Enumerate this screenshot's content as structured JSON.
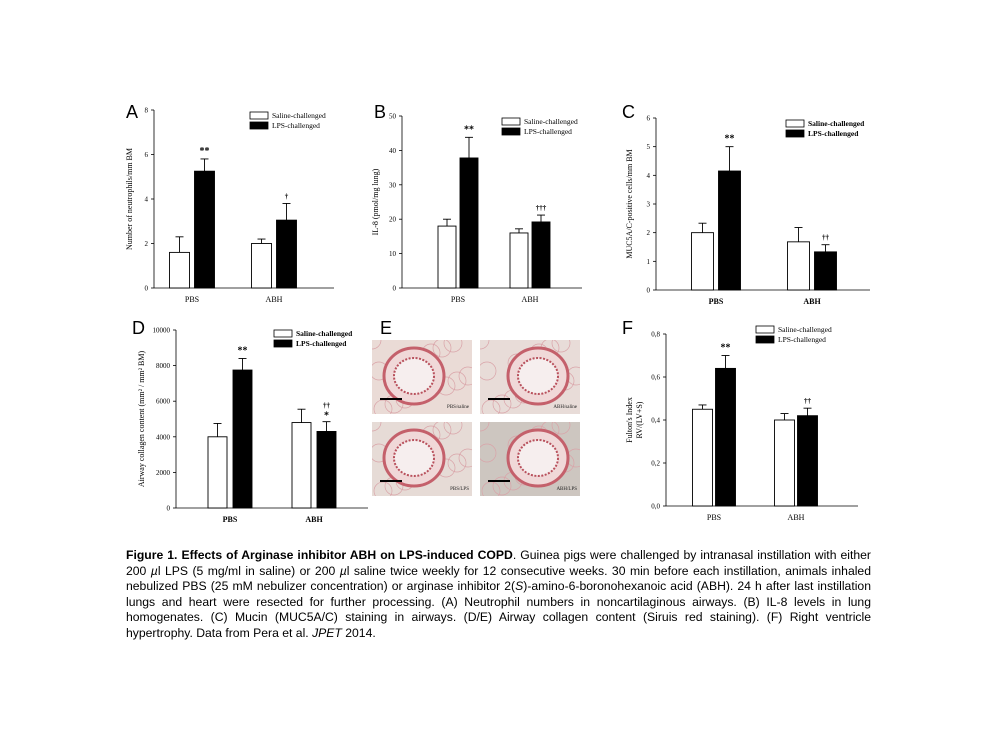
{
  "chart_data": [
    {
      "panel": "A",
      "type": "bar",
      "categories": [
        "PBS",
        "ABH"
      ],
      "series": [
        {
          "name": "Saline-challenged",
          "values": [
            1.6,
            2.0
          ],
          "errors": [
            0.7,
            0.2
          ],
          "color": "#ffffff"
        },
        {
          "name": "LPS-challenged",
          "values": [
            5.25,
            3.05
          ],
          "errors": [
            0.55,
            0.75
          ],
          "color": "#000000"
        }
      ],
      "significance": [
        [
          "",
          "**"
        ],
        [
          "",
          "†"
        ]
      ],
      "ylabel": "Number of neutrophils/mm BM",
      "ylim": [
        0,
        8
      ],
      "yticks": [
        "0",
        "2",
        "4",
        "6",
        "8"
      ],
      "legend": "top-right"
    },
    {
      "panel": "B",
      "type": "bar",
      "categories": [
        "PBS",
        "ABH"
      ],
      "series": [
        {
          "name": "Saline-challenged",
          "values": [
            18,
            16
          ],
          "errors": [
            2,
            1.2
          ],
          "color": "#ffffff"
        },
        {
          "name": "LPS-challenged",
          "values": [
            37.8,
            19.2
          ],
          "errors": [
            6,
            2
          ]
        }
      ],
      "significance": [
        [
          "",
          "**"
        ],
        [
          "",
          "†††"
        ]
      ],
      "ylabel": "IL-8 (pmol/mg lung)",
      "ylim": [
        0,
        50
      ],
      "yticks": [
        "0",
        "10",
        "20",
        "30",
        "40",
        "50"
      ],
      "legend": "top-right"
    },
    {
      "panel": "C",
      "type": "bar",
      "categories": [
        "PBS",
        "ABH"
      ],
      "series": [
        {
          "name": "Saline-challenged",
          "values": [
            2.0,
            1.68
          ],
          "errors": [
            0.33,
            0.5
          ]
        },
        {
          "name": "LPS-challenged",
          "values": [
            4.15,
            1.33
          ],
          "errors": [
            0.85,
            0.25
          ]
        }
      ],
      "significance": [
        [
          "",
          "**"
        ],
        [
          "",
          "††"
        ]
      ],
      "ylabel": "MUC5A/C-positive cells/mm BM",
      "ylim": [
        0,
        6
      ],
      "yticks": [
        "0",
        "1",
        "2",
        "3",
        "4",
        "5",
        "6"
      ],
      "legend": "top-right"
    },
    {
      "panel": "D",
      "type": "bar",
      "categories": [
        "PBS",
        "ABH"
      ],
      "series": [
        {
          "name": "Saline-challenged",
          "values": [
            4000,
            4800
          ],
          "errors": [
            750,
            750
          ]
        },
        {
          "name": "LPS-challenged",
          "values": [
            7750,
            4300
          ],
          "errors": [
            650,
            550
          ]
        }
      ],
      "significance": [
        [
          "",
          "**"
        ],
        [
          "",
          "††|*"
        ]
      ],
      "ylabel": "Airway collagen content (mm² / mm² BM)",
      "ylim": [
        0,
        10000
      ],
      "yticks": [
        "0",
        "2000",
        "4000",
        "6000",
        "8000",
        "10000"
      ],
      "legend": "top-right"
    },
    {
      "panel": "F",
      "type": "bar",
      "categories": [
        "PBS",
        "ABH"
      ],
      "series": [
        {
          "name": "Saline-challenged",
          "values": [
            0.45,
            0.4
          ],
          "errors": [
            0.02,
            0.03
          ]
        },
        {
          "name": "LPS-challenged",
          "values": [
            0.64,
            0.42
          ],
          "errors": [
            0.06,
            0.035
          ]
        }
      ],
      "significance": [
        [
          "",
          "**"
        ],
        [
          "",
          "††"
        ]
      ],
      "ylabel": "Fulton's Index",
      "ylabel2": "RV/(LV+S)",
      "ylim": [
        0,
        0.8
      ],
      "yticks": [
        "0,0",
        "0,2",
        "0,4",
        "0,6",
        "0,8"
      ],
      "legend": "top-right"
    }
  ],
  "panelE": {
    "label": "E",
    "images": [
      {
        "label": "PBS/saline",
        "bg": "#eadbd6"
      },
      {
        "label": "ABH/saline",
        "bg": "#e8dcd8"
      },
      {
        "label": "PBS/LPS",
        "bg": "#e6dbd6"
      },
      {
        "label": "ABH/LPS",
        "bg": "#cdc6c0"
      }
    ]
  },
  "caption": {
    "title": "Figure 1. Effects of Arginase inhibitor ABH on LPS-induced COPD",
    "p1": ". Guinea pigs were challenged by intranasal instillation with either 200 ",
    "mu1": "µ",
    "p2": "l LPS (5 mg/ml in saline) or 200 ",
    "mu2": "µ",
    "p3": "l saline twice weekly for 12 consecutive weeks. 30 min before each instillation, animals inhaled nebulized PBS (25 mM nebulizer concentration) or arginase inhibitor 2(",
    "s_italic": "S",
    "p4": ")-amino-6-boronohexanoic acid (ABH).  24 h after last instillation lungs and heart were resected for further processing. (A) Neutrophil numbers in noncartilaginous airways. (B) IL-8 levels in lung homogenates. (C) Mucin (MUC5A/C) staining in airways. (D/E) Airway collagen content (Siruis red staining). (F) Right ventricle hypertrophy. Data from Pera et al. ",
    "journal": "JPET",
    "p5": " 2014."
  }
}
